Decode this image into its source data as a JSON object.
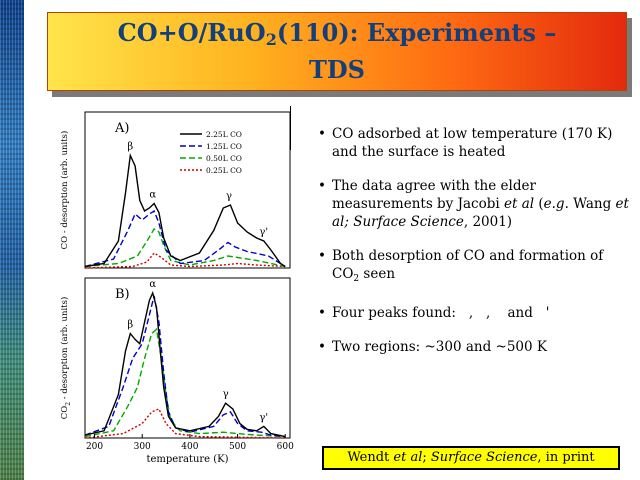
{
  "title": {
    "line1_a": "CO+O/RuO",
    "line1_sub": "2",
    "line1_b": "(110): Experiments –",
    "line2": "TDS"
  },
  "bullets": [
    {
      "text": "CO adsorbed at low temperature (170 K) and the surface is heated"
    },
    {
      "text_a": "The data agree with the elder measurements by Jacobi ",
      "em1": "et al",
      "text_b": " (",
      "em2": "e.g.",
      "text_c": " Wang ",
      "em3": "et al; Surface Science",
      "text_d": ", 2001)"
    },
    {
      "text_a": "Both desorption of CO and formation of CO",
      "sub": "2",
      "text_b": " seen"
    },
    {
      "text": "Four peaks found:   ,   ,    and   '"
    },
    {
      "text": "Two regions: ~300 and ~500 K"
    }
  ],
  "citation": {
    "a": "Wendt ",
    "em1": "et al",
    "b": "; ",
    "em2": "Surface Science",
    "c": ", in print"
  },
  "chart_data": [
    {
      "type": "line",
      "panel_label": "A)",
      "ylabel": "CO - desorption (arb. units)",
      "xlim": [
        180,
        610
      ],
      "legend_position": "top-right",
      "legend": [
        "2.25L CO",
        "1.25L CO",
        "0.50L CO",
        "0.25L CO"
      ],
      "peak_labels": [
        "β",
        "α",
        "γ",
        "γ'"
      ],
      "series": [
        {
          "name": "2.25L CO",
          "color": "#000000",
          "dash": "solid",
          "x": [
            180,
            220,
            250,
            265,
            275,
            285,
            295,
            305,
            315,
            325,
            335,
            345,
            360,
            380,
            420,
            450,
            470,
            485,
            500,
            520,
            540,
            555,
            570,
            590,
            600
          ],
          "y": [
            0.01,
            0.03,
            0.18,
            0.5,
            0.75,
            0.68,
            0.45,
            0.38,
            0.4,
            0.43,
            0.37,
            0.2,
            0.08,
            0.05,
            0.1,
            0.25,
            0.4,
            0.42,
            0.3,
            0.24,
            0.2,
            0.18,
            0.12,
            0.03,
            0.01
          ]
        },
        {
          "name": "1.25L CO",
          "color": "#0000cc",
          "dash": "dash",
          "x": [
            180,
            240,
            270,
            285,
            300,
            315,
            325,
            335,
            350,
            380,
            430,
            460,
            480,
            495,
            520,
            550,
            565,
            580,
            600
          ],
          "y": [
            0.01,
            0.06,
            0.25,
            0.36,
            0.32,
            0.36,
            0.38,
            0.3,
            0.12,
            0.03,
            0.05,
            0.12,
            0.17,
            0.14,
            0.11,
            0.09,
            0.08,
            0.05,
            0.01
          ]
        },
        {
          "name": "0.50L CO",
          "color": "#00aa00",
          "dash": "dash",
          "x": [
            180,
            250,
            290,
            310,
            325,
            335,
            345,
            360,
            400,
            450,
            480,
            500,
            540,
            570,
            600
          ],
          "y": [
            0.01,
            0.03,
            0.08,
            0.18,
            0.26,
            0.24,
            0.15,
            0.05,
            0.02,
            0.05,
            0.08,
            0.07,
            0.05,
            0.03,
            0.01
          ]
        },
        {
          "name": "0.25L CO",
          "color": "#cc0000",
          "dash": "dot",
          "x": [
            180,
            280,
            310,
            325,
            340,
            360,
            400,
            470,
            500,
            540,
            600
          ],
          "y": [
            0.0,
            0.01,
            0.04,
            0.1,
            0.07,
            0.02,
            0.01,
            0.02,
            0.03,
            0.02,
            0.01
          ]
        }
      ]
    },
    {
      "type": "line",
      "panel_label": "B)",
      "ylabel_a": "CO",
      "ylabel_sub": "2",
      "ylabel_b": " - desorption (arb. units)",
      "xlabel": "temperature (K)",
      "xlim": [
        180,
        610
      ],
      "xticks": [
        200,
        300,
        400,
        500,
        600
      ],
      "peak_labels": [
        "α",
        "β",
        "γ",
        "γ'"
      ],
      "series": [
        {
          "name": "2.25L CO",
          "color": "#000000",
          "dash": "solid",
          "x": [
            180,
            220,
            250,
            265,
            275,
            285,
            295,
            305,
            315,
            322,
            330,
            338,
            345,
            355,
            370,
            400,
            440,
            460,
            475,
            490,
            505,
            520,
            540,
            555,
            570,
            600
          ],
          "y": [
            0.02,
            0.05,
            0.3,
            0.6,
            0.72,
            0.68,
            0.65,
            0.8,
            0.95,
            1.0,
            0.9,
            0.6,
            0.35,
            0.15,
            0.07,
            0.05,
            0.08,
            0.15,
            0.24,
            0.2,
            0.1,
            0.06,
            0.05,
            0.08,
            0.03,
            0.01
          ]
        },
        {
          "name": "1.25L CO",
          "color": "#0000cc",
          "dash": "dash",
          "x": [
            180,
            230,
            260,
            280,
            300,
            315,
            325,
            335,
            345,
            355,
            370,
            400,
            450,
            470,
            485,
            500,
            520,
            550,
            570,
            600
          ],
          "y": [
            0.02,
            0.08,
            0.35,
            0.55,
            0.65,
            0.85,
            0.98,
            0.8,
            0.45,
            0.18,
            0.07,
            0.04,
            0.08,
            0.16,
            0.18,
            0.1,
            0.05,
            0.04,
            0.02,
            0.01
          ]
        },
        {
          "name": "0.50L CO",
          "color": "#00aa00",
          "dash": "dash",
          "x": [
            180,
            240,
            270,
            290,
            305,
            320,
            330,
            340,
            350,
            360,
            380,
            420,
            470,
            500,
            540,
            600
          ],
          "y": [
            0.01,
            0.05,
            0.22,
            0.35,
            0.55,
            0.72,
            0.75,
            0.55,
            0.3,
            0.12,
            0.05,
            0.03,
            0.04,
            0.03,
            0.02,
            0.01
          ]
        },
        {
          "name": "0.25L CO",
          "color": "#cc0000",
          "dash": "dot",
          "x": [
            180,
            260,
            300,
            320,
            335,
            350,
            370,
            420,
            600
          ],
          "y": [
            0.0,
            0.03,
            0.1,
            0.18,
            0.2,
            0.1,
            0.03,
            0.01,
            0.0
          ]
        }
      ]
    }
  ]
}
